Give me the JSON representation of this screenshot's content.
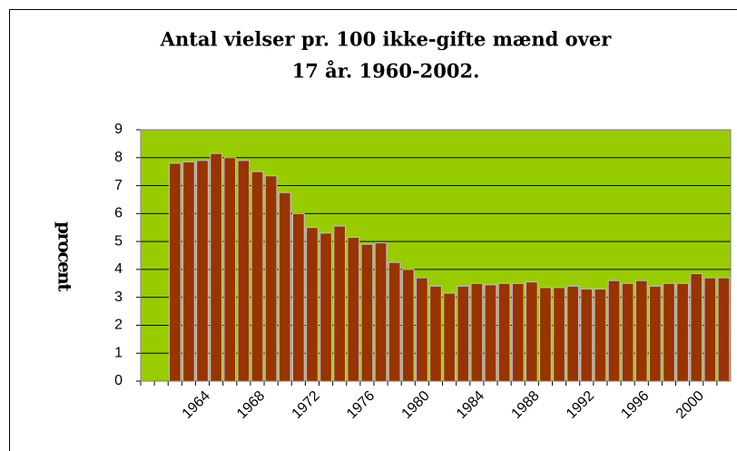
{
  "chart_data": {
    "type": "bar",
    "title": [
      "Antal vielser pr. 100 ikke-gifte mænd over",
      "17 år. 1960-2002."
    ],
    "y_label": "procent",
    "categories": [
      null,
      null,
      null,
      null,
      "1964",
      null,
      null,
      null,
      "1968",
      null,
      null,
      null,
      "1972",
      null,
      null,
      null,
      "1976",
      null,
      null,
      null,
      "1980",
      null,
      null,
      null,
      "1984",
      null,
      null,
      null,
      "1988",
      null,
      null,
      null,
      "1992",
      null,
      null,
      null,
      "1996",
      null,
      null,
      null,
      "2000",
      null,
      null
    ],
    "values": [
      null,
      null,
      7.8,
      7.85,
      7.9,
      8.15,
      8.0,
      7.9,
      7.5,
      7.35,
      6.75,
      6.0,
      5.5,
      5.3,
      5.55,
      5.15,
      4.9,
      4.95,
      4.25,
      4.0,
      3.7,
      3.4,
      3.15,
      3.4,
      3.5,
      3.45,
      3.5,
      3.5,
      3.55,
      3.35,
      3.35,
      3.4,
      3.3,
      3.3,
      3.6,
      3.5,
      3.6,
      3.4,
      3.5,
      3.5,
      3.85,
      3.7,
      3.7
    ],
    "color": "#993300",
    "plot_background": "#99cc00",
    "ylim": [
      0,
      9
    ],
    "yticks": [
      0,
      1,
      2,
      3,
      4,
      5,
      6,
      7,
      8,
      9
    ],
    "grid": true
  }
}
